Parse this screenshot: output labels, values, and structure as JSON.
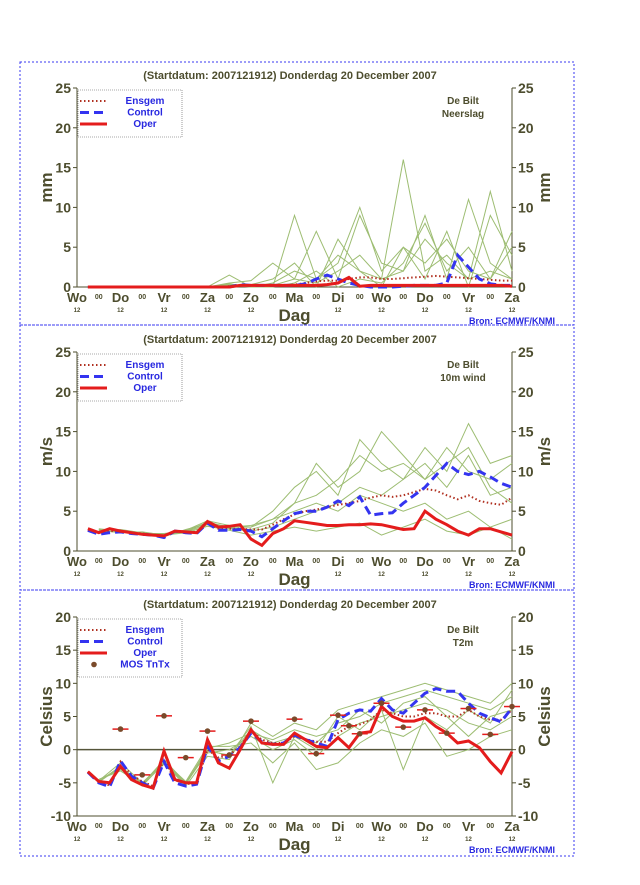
{
  "colors": {
    "ensemble": "#9dbd72",
    "ensgem": "#b03020",
    "control": "#3434f0",
    "oper": "#e41c1c",
    "mos": "#7a4a2a",
    "axis_text": "#4d4d2e",
    "legend_text": "#2828e0",
    "frame": "#3a3af0"
  },
  "chart_data": [
    {
      "type": "line",
      "title": "(Startdatum: 2007121912)   Donderdag 20 December  2007",
      "station": "De Bilt",
      "variable": "Neerslag",
      "ylabel": "mm",
      "xlabel": "Dag",
      "source": "Bron: ECMWF/KNMI",
      "ylim": [
        0,
        25
      ],
      "yticks": [
        0,
        5,
        10,
        15,
        20,
        25
      ],
      "xlim": [
        0,
        10
      ],
      "day_labels": [
        "Wo",
        "Do",
        "Vr",
        "Za",
        "Zo",
        "Ma",
        "Di",
        "Wo",
        "Do",
        "Vr",
        "Za"
      ],
      "hour_labels": [
        "12",
        "00"
      ],
      "legend": [
        "Ensgem",
        "Control",
        "Oper"
      ],
      "x_main": [
        0.25,
        0.5,
        0.75,
        1,
        1.25,
        1.5,
        1.75,
        2,
        2.25,
        2.5,
        2.75,
        3,
        3.25,
        3.5,
        3.75,
        4,
        4.25,
        4.5,
        4.75,
        5,
        5.25,
        5.5,
        5.75,
        6,
        6.25,
        6.5,
        6.75,
        7,
        7.25,
        7.5,
        7.75,
        8,
        8.25,
        8.5,
        8.75,
        9,
        9.25,
        9.5,
        9.75,
        10
      ],
      "x_members": [
        0.5,
        1,
        1.5,
        2,
        2.5,
        3,
        3.5,
        4,
        4.5,
        5,
        5.5,
        6,
        6.5,
        7,
        7.5,
        8,
        8.5,
        9,
        9.5,
        10
      ],
      "members": [
        [
          0,
          0,
          0,
          0,
          0,
          0,
          0.3,
          0,
          0.5,
          2,
          1,
          3,
          10,
          2,
          5,
          3,
          6,
          2,
          1,
          5
        ],
        [
          0,
          0,
          0,
          0,
          0,
          0,
          1.5,
          0,
          0,
          9,
          1,
          4,
          2,
          1,
          16,
          2,
          4,
          1,
          12,
          2
        ],
        [
          0,
          0,
          0,
          0,
          0,
          0,
          0.5,
          0.8,
          3,
          1,
          7,
          1,
          9,
          3,
          2,
          9,
          1,
          11,
          3,
          1
        ],
        [
          0,
          0,
          0,
          0,
          0,
          0,
          0.2,
          0,
          0,
          0.5,
          2,
          0,
          1,
          0.5,
          3,
          8,
          2,
          5,
          1,
          7
        ],
        [
          0,
          0,
          0,
          0,
          0,
          0,
          0,
          0.3,
          1,
          3,
          0,
          6,
          2,
          0,
          5,
          1,
          7,
          0,
          9,
          4
        ],
        [
          0,
          0,
          0,
          0,
          0,
          0,
          0.4,
          0,
          0.2,
          1,
          0.5,
          2,
          4,
          1,
          2,
          6,
          3,
          1,
          2,
          1
        ]
      ],
      "ensgem": [
        0,
        0,
        0,
        0,
        0,
        0,
        0,
        0,
        0,
        0,
        0,
        0,
        0,
        0.1,
        0.2,
        0.2,
        0.2,
        0.2,
        0.2,
        0.3,
        0.5,
        0.7,
        0.8,
        0.8,
        1.0,
        1.2,
        1.2,
        1.0,
        1.0,
        1.1,
        1.2,
        1.3,
        1.4,
        1.3,
        1.2,
        1.1,
        1.0,
        0.9,
        0.8,
        0.8
      ],
      "control": [
        0,
        0,
        0,
        0,
        0,
        0,
        0,
        0,
        0,
        0,
        0,
        0,
        0,
        0,
        0.3,
        0.2,
        0.2,
        0.2,
        0.2,
        0.2,
        0.4,
        1.0,
        1.5,
        1.0,
        0.5,
        0.2,
        0,
        0,
        0,
        0.1,
        0.2,
        0.2,
        0.2,
        0.5,
        4.0,
        2.5,
        1.0,
        0.4,
        0.2,
        0.2
      ],
      "oper": [
        0,
        0,
        0,
        0,
        0,
        0,
        0,
        0,
        0,
        0,
        0,
        0,
        0,
        0,
        0.2,
        0.2,
        0.2,
        0.2,
        0.2,
        0.2,
        0.2,
        0.2,
        0.3,
        0.5,
        1.2,
        0.1,
        0.2,
        0.2,
        0.2,
        0.2,
        0.2,
        0.2,
        0.2,
        0.2,
        0.2,
        0.2,
        0.2,
        0.2,
        0.2,
        0.1
      ],
      "zero_line": false
    },
    {
      "type": "line",
      "title": "(Startdatum: 2007121912)   Donderdag 20 December  2007",
      "station": "De Bilt",
      "variable": "10m wind",
      "ylabel": "m/s",
      "xlabel": "Dag",
      "source": "Bron: ECMWF/KNMI",
      "ylim": [
        0,
        25
      ],
      "yticks": [
        0,
        5,
        10,
        15,
        20,
        25
      ],
      "xlim": [
        0,
        10
      ],
      "day_labels": [
        "Wo",
        "Do",
        "Vr",
        "Za",
        "Zo",
        "Ma",
        "Di",
        "Wo",
        "Do",
        "Vr",
        "Za"
      ],
      "hour_labels": [
        "12",
        "00"
      ],
      "legend": [
        "Ensgem",
        "Control",
        "Oper"
      ],
      "x_main": [
        0.25,
        0.5,
        0.75,
        1,
        1.25,
        1.5,
        1.75,
        2,
        2.25,
        2.5,
        2.75,
        3,
        3.25,
        3.5,
        3.75,
        4,
        4.25,
        4.5,
        4.75,
        5,
        5.25,
        5.5,
        5.75,
        6,
        6.25,
        6.5,
        6.75,
        7,
        7.25,
        7.5,
        7.75,
        8,
        8.25,
        8.5,
        8.75,
        9,
        9.25,
        9.5,
        9.75,
        10
      ],
      "x_members": [
        0.5,
        1,
        1.5,
        2,
        2.5,
        3,
        3.5,
        4,
        4.5,
        5,
        5.5,
        6,
        6.5,
        7,
        7.5,
        8,
        8.5,
        9,
        9.5,
        10
      ],
      "members": [
        [
          2.5,
          2.4,
          2.2,
          2.0,
          2.5,
          3.5,
          3,
          3,
          4,
          6,
          7,
          9,
          12,
          10,
          11,
          9,
          13,
          10,
          9,
          11
        ],
        [
          2.7,
          2.6,
          2.3,
          2.1,
          2.4,
          3.3,
          2.8,
          2.5,
          3,
          4,
          5,
          6,
          8,
          7,
          9,
          11,
          8,
          12,
          7,
          8
        ],
        [
          2.4,
          2.5,
          2.1,
          1.9,
          2.6,
          3.8,
          3.2,
          3,
          5,
          8,
          10,
          7,
          14,
          11,
          9,
          13,
          10,
          16,
          11,
          12
        ],
        [
          2.6,
          2.3,
          2.4,
          2.0,
          2.3,
          3.1,
          2.6,
          2,
          2.5,
          3,
          2.5,
          3,
          3.5,
          2,
          3,
          4,
          2.5,
          2,
          3,
          1.5
        ],
        [
          2.8,
          2.5,
          2.2,
          2.2,
          2.5,
          3.6,
          3,
          3.2,
          4,
          5,
          6,
          5,
          7,
          6,
          5,
          6,
          4,
          5,
          3,
          4
        ],
        [
          2.5,
          2.7,
          2.3,
          1.8,
          2.7,
          3.4,
          2.9,
          2.7,
          3.5,
          6,
          11,
          8,
          10,
          15,
          12,
          9,
          11,
          13,
          8,
          6
        ]
      ],
      "ensgem": [
        2.7,
        2.3,
        2.5,
        2.5,
        2.3,
        2.2,
        2.0,
        1.9,
        2.5,
        2.4,
        2.4,
        3.5,
        2.8,
        2.8,
        2.8,
        2.7,
        2.7,
        3.3,
        4.0,
        4.6,
        5.0,
        5.2,
        5.5,
        5.8,
        6.0,
        6.3,
        6.7,
        7.0,
        6.8,
        7.0,
        7.4,
        7.8,
        7.6,
        7.0,
        6.5,
        7.0,
        6.3,
        6.0,
        5.8,
        6.7
      ],
      "control": [
        2.6,
        2.1,
        2.3,
        2.4,
        2.2,
        2.1,
        2.0,
        1.7,
        2.5,
        2.3,
        2.2,
        3.5,
        2.6,
        2.6,
        2.7,
        2.5,
        1.8,
        2.8,
        3.8,
        4.7,
        5.0,
        5.0,
        5.5,
        6.3,
        5.7,
        6.8,
        4.5,
        4.7,
        4.8,
        6.0,
        7.0,
        8.0,
        9.5,
        11.0,
        10.0,
        9.6,
        10.0,
        9.3,
        8.5,
        8.0
      ],
      "oper": [
        2.8,
        2.3,
        2.8,
        2.5,
        2.3,
        2.1,
        2.0,
        1.9,
        2.5,
        2.4,
        2.3,
        3.7,
        3.0,
        3.1,
        3.3,
        1.5,
        0.7,
        2.2,
        2.8,
        3.8,
        3.6,
        3.4,
        3.2,
        3.2,
        3.3,
        3.3,
        3.4,
        3.3,
        3.0,
        2.7,
        2.8,
        5.0,
        4.0,
        3.3,
        2.5,
        2.0,
        2.8,
        2.8,
        2.4,
        2.0
      ],
      "zero_line": false
    },
    {
      "type": "line",
      "title": "(Startdatum: 2007121912)   Donderdag 20 December  2007",
      "station": "De Bilt",
      "variable": "T2m",
      "ylabel": "Celsius",
      "xlabel": "Dag",
      "source": "Bron: ECMWF/KNMI",
      "ylim": [
        -10,
        20
      ],
      "yticks": [
        -10,
        -5,
        0,
        5,
        10,
        15,
        20
      ],
      "xlim": [
        0,
        10
      ],
      "day_labels": [
        "Wo",
        "Do",
        "Vr",
        "Za",
        "Zo",
        "Ma",
        "Di",
        "Wo",
        "Do",
        "Vr",
        "Za"
      ],
      "hour_labels": [
        "12",
        "00"
      ],
      "legend": [
        "Ensgem",
        "Control",
        "Oper",
        "MOS TnTx"
      ],
      "x_main": [
        0.25,
        0.5,
        0.75,
        1,
        1.25,
        1.5,
        1.75,
        2,
        2.25,
        2.5,
        2.75,
        3,
        3.25,
        3.5,
        3.75,
        4,
        4.25,
        4.5,
        4.75,
        5,
        5.25,
        5.5,
        5.75,
        6,
        6.25,
        6.5,
        6.75,
        7,
        7.25,
        7.5,
        7.75,
        8,
        8.25,
        8.5,
        8.75,
        9,
        9.25,
        9.5,
        9.75,
        10
      ],
      "x_members": [
        0.5,
        1,
        1.5,
        2,
        2.5,
        3,
        3.5,
        4,
        4.5,
        5,
        5.5,
        6,
        6.5,
        7,
        7.5,
        8,
        8.5,
        9,
        9.5,
        10
      ],
      "members": [
        [
          -4.5,
          -3,
          -5,
          -2,
          -5,
          0,
          -1,
          3,
          1,
          2,
          1,
          4,
          5,
          7,
          8,
          9,
          8,
          7,
          6,
          8
        ],
        [
          -4.8,
          -2.5,
          -5.2,
          -1.5,
          -5,
          -0.5,
          0,
          2,
          0,
          1.5,
          -1,
          2,
          4,
          5,
          6,
          7,
          6,
          4,
          3,
          5
        ],
        [
          -4.6,
          -2.8,
          -5.5,
          -2,
          -5.5,
          -1,
          -1.5,
          4,
          2,
          4,
          3,
          6,
          7,
          8,
          9,
          10,
          9,
          8,
          7,
          10
        ],
        [
          -4.7,
          -2,
          -5,
          -1.8,
          -4.8,
          0.5,
          0.5,
          1,
          -2,
          1,
          -3,
          -2,
          1,
          3,
          2,
          4,
          -1,
          0,
          2,
          3
        ],
        [
          -4.5,
          -3.2,
          -5.3,
          -2.2,
          -5.2,
          -0.2,
          -0.8,
          3.5,
          -5,
          2,
          0,
          5,
          3,
          6,
          -3,
          5,
          3,
          6,
          4,
          9
        ],
        [
          -4.9,
          -2.6,
          -5.1,
          -1.9,
          -5.1,
          0.2,
          1,
          2.5,
          1.5,
          3,
          2,
          3,
          6,
          4,
          7,
          8,
          5,
          2,
          5,
          6
        ]
      ],
      "ensgem": [
        -3.3,
        -4.8,
        -5.4,
        -1.8,
        -3.8,
        -4.8,
        -5.5,
        -1.5,
        -4.6,
        -5.2,
        -5,
        0,
        -1.2,
        -0.8,
        0.5,
        2.8,
        1.5,
        1,
        1,
        2,
        1.6,
        1.2,
        1.2,
        2.5,
        3.5,
        3.8,
        4.5,
        6,
        5.5,
        5,
        5,
        5.5,
        5.5,
        5,
        5,
        6,
        5,
        4.5,
        4.5,
        6
      ],
      "control": [
        -3.4,
        -5,
        -5.6,
        -1.7,
        -4,
        -5,
        -5.8,
        -1.8,
        -5,
        -5.5,
        -5.2,
        0.5,
        -1.7,
        -1,
        0.3,
        2.5,
        1.2,
        0.8,
        1,
        2.2,
        1.5,
        1,
        0.5,
        4.5,
        5.5,
        6,
        5.8,
        7.7,
        6,
        5.5,
        7,
        8.5,
        9.2,
        8.8,
        8.8,
        7,
        5.5,
        4.8,
        4.2,
        6.3
      ],
      "oper": [
        -3.3,
        -4.8,
        -5,
        -2.5,
        -4.5,
        -5.3,
        -5.8,
        -0.2,
        -4.5,
        -5,
        -5,
        1.5,
        -2,
        -2.8,
        0,
        3,
        1,
        0.8,
        0.8,
        2.5,
        1.5,
        0.5,
        0.3,
        1.8,
        0.3,
        2.5,
        2.7,
        6.5,
        5,
        4.3,
        4.3,
        4.8,
        3.5,
        2.5,
        1,
        1.3,
        0.3,
        -1.8,
        -3.5,
        -0.3
      ],
      "mos_tntx": [
        [
          1,
          3.1
        ],
        [
          1.5,
          -3.8
        ],
        [
          2,
          5.1
        ],
        [
          2.5,
          -1.2
        ],
        [
          3,
          2.8
        ],
        [
          3.5,
          -0.8
        ],
        [
          4,
          4.3
        ],
        [
          5,
          4.6
        ],
        [
          5.5,
          -0.6
        ],
        [
          6,
          5.2
        ],
        [
          6.25,
          3.6
        ],
        [
          6.5,
          2.4
        ],
        [
          7,
          7
        ],
        [
          7.5,
          3.4
        ],
        [
          8,
          6
        ],
        [
          8.5,
          2.5
        ],
        [
          9,
          6.2
        ],
        [
          9.5,
          2.3
        ],
        [
          10,
          6.5
        ]
      ],
      "zero_line": true
    }
  ]
}
